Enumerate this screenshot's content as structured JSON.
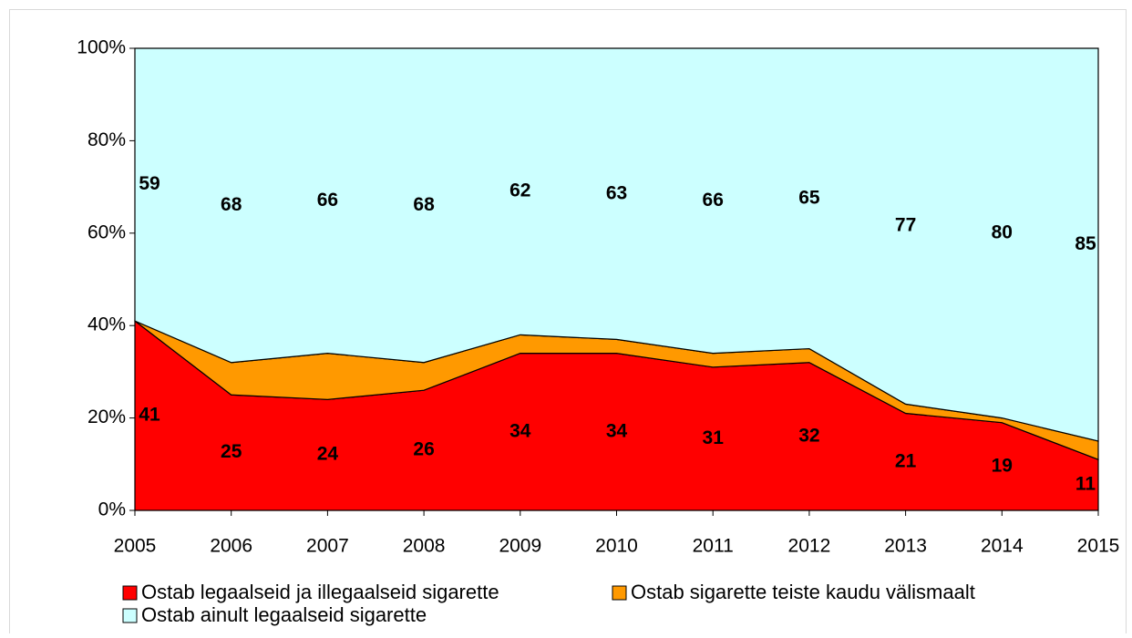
{
  "chart_data": {
    "type": "stacked_area",
    "x": [
      2005,
      2006,
      2007,
      2008,
      2009,
      2010,
      2011,
      2012,
      2013,
      2014,
      2015
    ],
    "xlim": [
      2005,
      2015
    ],
    "ylim": [
      0,
      100
    ],
    "yticks": [
      {
        "value": 0,
        "label": "0%"
      },
      {
        "value": 20,
        "label": "20%"
      },
      {
        "value": 40,
        "label": "40%"
      },
      {
        "value": 60,
        "label": "60%"
      },
      {
        "value": 80,
        "label": "80%"
      },
      {
        "value": 100,
        "label": "100%"
      }
    ],
    "series": [
      {
        "name": "Ostab legaalseid ja illegaalseid sigarette",
        "color": "#ff0000",
        "values": [
          41,
          25,
          24,
          26,
          34,
          34,
          31,
          32,
          21,
          19,
          11
        ]
      },
      {
        "name": "Ostab sigarette teiste kaudu välismaalt",
        "color": "#ff9900",
        "values": [
          0,
          7,
          10,
          6,
          4,
          3,
          3,
          3,
          2,
          1,
          4
        ]
      },
      {
        "name": "Ostab ainult legaalseid sigarette",
        "color": "#ccffff",
        "values": [
          59,
          68,
          66,
          68,
          62,
          63,
          66,
          65,
          77,
          80,
          85
        ]
      }
    ]
  }
}
